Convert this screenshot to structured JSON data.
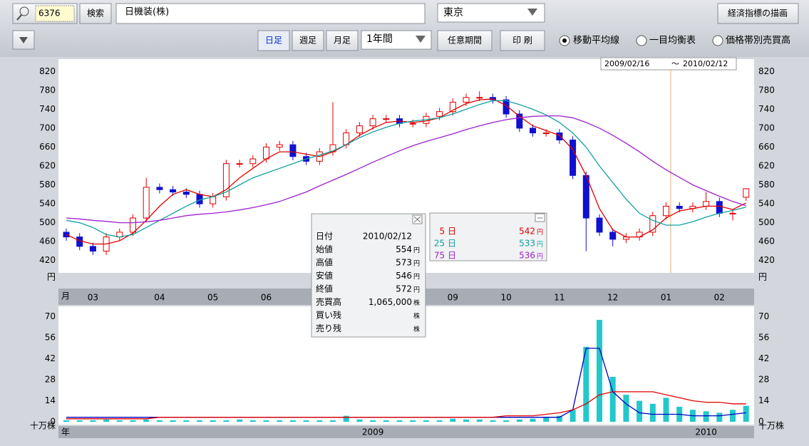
{
  "toolbar": {
    "code": "6376",
    "search": "検索",
    "name": "日機装(株)",
    "market": "東京",
    "econ": "経済指標の描画",
    "periods": [
      "日足",
      "週足",
      "月足"
    ],
    "range": "1年間",
    "custom": "任意期間",
    "print": "印 刷",
    "radios": [
      "移動平均線",
      "一目均衡表",
      "価格帯別売買高"
    ],
    "date_from": "2009/02/16",
    "date_sep": "～",
    "date_to": "2010/02/12"
  },
  "info_panel": [
    {
      "label": "日付",
      "value": "2010/02/12"
    },
    {
      "label": "始値",
      "value": "554",
      "unit": "円"
    },
    {
      "label": "高値",
      "value": "573",
      "unit": "円"
    },
    {
      "label": "安値",
      "value": "546",
      "unit": "円"
    },
    {
      "label": "終値",
      "value": "572",
      "unit": "円"
    },
    {
      "label": "売買高",
      "value": "1,065,000",
      "unit": "株"
    },
    {
      "label": "買い残",
      "unit": "株"
    },
    {
      "label": "売り残",
      "unit": "株"
    }
  ],
  "ma_panel": [
    {
      "value": "542",
      "unit": "円"
    },
    {
      "value": "533",
      "unit": "円"
    },
    {
      "value": "536",
      "unit": "円"
    }
  ],
  "chart_data": [
    {
      "type": "candlestick",
      "x_label": "月",
      "y_unit": "円",
      "categories": [
        null,
        null,
        "03",
        null,
        null,
        null,
        null,
        "04",
        null,
        null,
        null,
        "05",
        null,
        null,
        null,
        "06",
        null,
        null,
        null,
        null,
        null,
        null,
        null,
        null,
        null,
        null,
        null,
        null,
        null,
        "09",
        null,
        null,
        null,
        "10",
        null,
        null,
        null,
        "11",
        null,
        null,
        null,
        "12",
        null,
        null,
        null,
        "01",
        null,
        null,
        null,
        "02",
        null,
        null
      ],
      "open": [
        480,
        470,
        450,
        440,
        470,
        480,
        510,
        575,
        570,
        565,
        560,
        540,
        555,
        625,
        625,
        635,
        660,
        665,
        640,
        630,
        650,
        665,
        690,
        705,
        720,
        720,
        710,
        710,
        725,
        735,
        755,
        765,
        765,
        760,
        730,
        700,
        690,
        690,
        675,
        600,
        510,
        480,
        465,
        470,
        480,
        515,
        535,
        530,
        535,
        545,
        520,
        554
      ],
      "high": [
        488,
        478,
        458,
        478,
        488,
        518,
        595,
        583,
        578,
        573,
        568,
        563,
        633,
        633,
        643,
        668,
        673,
        673,
        648,
        658,
        755,
        698,
        713,
        728,
        728,
        728,
        718,
        733,
        743,
        763,
        773,
        778,
        773,
        768,
        738,
        708,
        698,
        698,
        683,
        608,
        518,
        488,
        478,
        488,
        523,
        543,
        543,
        543,
        565,
        553,
        528,
        573
      ],
      "low": [
        462,
        442,
        432,
        432,
        462,
        472,
        502,
        562,
        557,
        552,
        532,
        532,
        547,
        617,
        617,
        627,
        652,
        632,
        622,
        622,
        642,
        657,
        682,
        697,
        712,
        702,
        702,
        702,
        717,
        727,
        747,
        757,
        752,
        722,
        692,
        682,
        682,
        667,
        592,
        440,
        472,
        450,
        457,
        462,
        472,
        507,
        522,
        522,
        527,
        512,
        505,
        546
      ],
      "close": [
        470,
        450,
        440,
        470,
        480,
        510,
        575,
        570,
        565,
        560,
        540,
        555,
        625,
        625,
        635,
        660,
        665,
        640,
        630,
        650,
        665,
        690,
        705,
        720,
        720,
        710,
        710,
        725,
        735,
        755,
        765,
        765,
        760,
        730,
        700,
        690,
        690,
        675,
        600,
        510,
        480,
        465,
        470,
        480,
        515,
        535,
        530,
        535,
        545,
        520,
        520,
        572
      ],
      "up_color": "#e00000",
      "down_color": "#1010d0",
      "series": [
        {
          "name": "5 日",
          "color": "#e00000",
          "values": [
            475,
            462,
            455,
            455,
            462,
            478,
            505,
            535,
            560,
            570,
            560,
            555,
            570,
            595,
            615,
            635,
            650,
            650,
            645,
            640,
            650,
            665,
            685,
            700,
            712,
            715,
            712,
            715,
            722,
            738,
            752,
            760,
            762,
            748,
            725,
            705,
            695,
            685,
            655,
            600,
            530,
            485,
            470,
            470,
            485,
            510,
            525,
            530,
            535,
            535,
            528,
            542
          ]
        },
        {
          "name": "25 日",
          "color": "#10a0a0",
          "values": [
            505,
            500,
            490,
            475,
            470,
            475,
            490,
            505,
            520,
            535,
            548,
            555,
            565,
            580,
            595,
            605,
            615,
            625,
            635,
            643,
            652,
            665,
            680,
            692,
            702,
            710,
            715,
            718,
            722,
            730,
            740,
            750,
            758,
            758,
            750,
            740,
            728,
            712,
            690,
            660,
            620,
            585,
            550,
            520,
            505,
            495,
            495,
            502,
            512,
            520,
            526,
            533
          ]
        },
        {
          "name": "75 日",
          "color": "#a020d0",
          "values": [
            510,
            508,
            505,
            503,
            500,
            500,
            502,
            505,
            510,
            515,
            518,
            520,
            523,
            527,
            532,
            538,
            545,
            555,
            565,
            578,
            590,
            602,
            615,
            628,
            640,
            652,
            663,
            672,
            680,
            688,
            697,
            705,
            712,
            718,
            722,
            725,
            726,
            726,
            722,
            712,
            700,
            685,
            668,
            650,
            630,
            612,
            596,
            580,
            568,
            556,
            545,
            536
          ]
        }
      ],
      "ylim": [
        394,
        846
      ],
      "yticks": [
        420,
        460,
        500,
        540,
        580,
        620,
        660,
        700,
        740,
        780,
        820
      ],
      "grid": false
    },
    {
      "type": "bar",
      "x_label": "年",
      "y_unit": "十万株",
      "categories": [
        null,
        null,
        null,
        null,
        null,
        null,
        null,
        null,
        null,
        null,
        null,
        null,
        null,
        null,
        null,
        null,
        null,
        null,
        null,
        null,
        null,
        null,
        null,
        "2009",
        null,
        null,
        null,
        null,
        null,
        null,
        null,
        null,
        null,
        null,
        null,
        null,
        null,
        null,
        null,
        null,
        null,
        null,
        null,
        null,
        null,
        null,
        null,
        null,
        "2010",
        null,
        null,
        null
      ],
      "values": [
        1,
        1,
        1,
        1.5,
        1,
        1,
        1.5,
        1,
        1,
        1,
        1,
        1,
        1,
        1.5,
        1,
        1,
        1,
        1,
        1,
        1,
        1,
        4,
        1.5,
        1,
        1,
        1,
        1,
        1,
        1,
        2,
        1.5,
        1.5,
        1,
        1,
        1.5,
        2,
        3,
        4,
        8,
        50,
        68,
        30,
        18,
        14,
        12,
        16,
        10,
        8,
        7,
        6,
        8,
        10.65
      ],
      "color": "#22c8cc",
      "lines": [
        {
          "color": "#0000c0",
          "values": [
            3,
            3,
            3,
            3,
            3,
            3,
            3,
            3,
            3,
            3,
            3,
            3,
            3,
            3,
            3,
            3,
            3,
            3,
            3,
            3,
            3,
            3,
            3,
            3,
            3,
            3,
            3,
            3,
            3,
            3,
            3,
            3,
            3,
            3,
            3,
            3,
            3,
            3,
            8,
            49,
            49,
            20,
            12,
            6,
            5,
            5,
            5,
            4,
            4,
            4,
            5,
            6
          ]
        },
        {
          "color": "#e00000",
          "values": [
            2,
            2,
            2,
            2,
            2,
            2,
            2,
            3,
            3,
            3,
            3,
            3,
            3,
            3,
            3,
            3,
            3,
            3,
            3,
            3,
            3,
            3,
            3,
            3,
            3,
            3,
            3,
            3,
            3,
            3,
            3,
            3,
            3,
            4,
            4,
            4,
            5,
            6,
            8,
            12,
            18,
            20,
            20,
            20,
            20,
            18,
            16,
            14,
            13,
            13,
            12,
            12
          ]
        }
      ],
      "ylim": [
        0,
        77
      ],
      "yticks": [
        0,
        14,
        28,
        42,
        56,
        70
      ],
      "grid": false
    }
  ]
}
